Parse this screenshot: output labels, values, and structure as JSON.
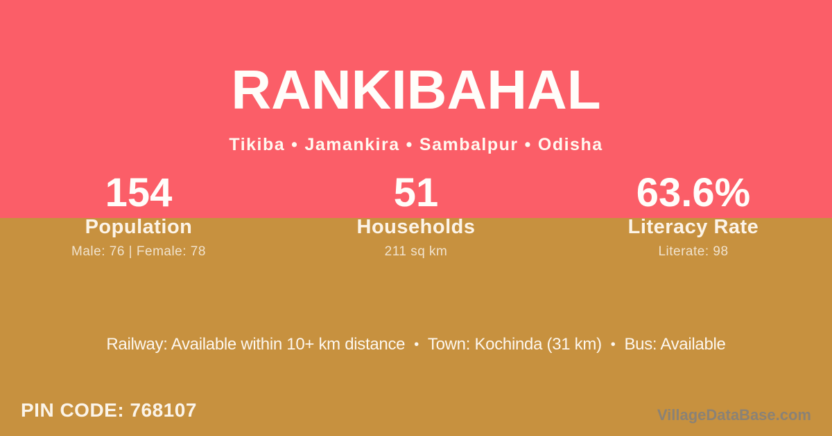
{
  "colors": {
    "header_background": "#FB5E68",
    "body_background": "#C7913F",
    "primary_text": "#FFFFFF",
    "muted_text": "rgba(255,255,255,0.75)",
    "watermark_text": "#8A8276"
  },
  "header": {
    "title": "RANKIBAHAL",
    "separator": "•",
    "location_parts": [
      "Tikiba",
      "Jamankira",
      "Sambalpur",
      "Odisha"
    ]
  },
  "stats": [
    {
      "value": "154",
      "label": "Population",
      "sublabel": "Male: 76 | Female: 78"
    },
    {
      "value": "51",
      "label": "Households",
      "sublabel": "211 sq km"
    },
    {
      "value": "63.6%",
      "label": "Literacy Rate",
      "sublabel": "Literate: 98"
    }
  ],
  "amenities": {
    "separator": "•",
    "segments": [
      "Railway: Available within 10+ km distance",
      "Town: Kochinda (31 km)",
      "Bus: Available"
    ]
  },
  "footer": {
    "pin_code": "PIN CODE: 768107",
    "watermark": "VillageDataBase.com"
  }
}
